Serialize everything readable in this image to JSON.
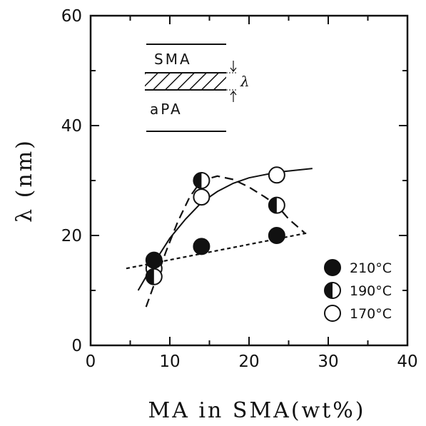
{
  "chart_data": {
    "type": "scatter",
    "xlabel": "MA in SMA(wt%)",
    "ylabel": "λ (nm)",
    "xlim": [
      0,
      40
    ],
    "ylim": [
      0,
      60
    ],
    "xticks": [
      "0",
      "10",
      "20",
      "30",
      "40"
    ],
    "yticks": [
      "0",
      "20",
      "40",
      "60"
    ],
    "grid": false,
    "legend_position": "right",
    "series": [
      {
        "name": "210°C",
        "marker": "filled-circle",
        "x": [
          8,
          14,
          23.5
        ],
        "y": [
          15.5,
          18,
          20
        ],
        "fit": "short-dashed line"
      },
      {
        "name": "190°C",
        "marker": "half-filled-circle",
        "x": [
          8,
          14,
          23.5
        ],
        "y": [
          12.5,
          30,
          25.5
        ],
        "fit": "long-dashed curve"
      },
      {
        "name": "170°C",
        "marker": "open-circle",
        "x": [
          8,
          14,
          23.5
        ],
        "y": [
          14,
          27,
          31
        ],
        "fit": "solid curve"
      }
    ],
    "inset": {
      "top_label": "SMA",
      "bottom_label": "aPA",
      "thickness_label": "λ"
    }
  }
}
